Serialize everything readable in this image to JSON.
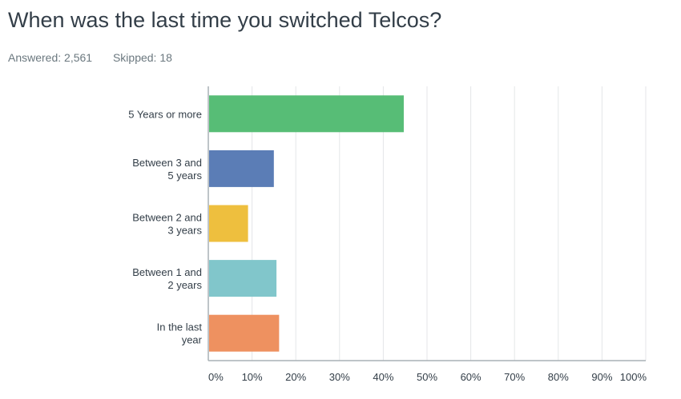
{
  "question": {
    "title": "When was the last time you switched Telcos?",
    "answered": "Answered: 2,561",
    "skipped": "Skipped: 18"
  },
  "chart_data": {
    "type": "bar",
    "orientation": "horizontal",
    "categories": [
      [
        "5 Years or more"
      ],
      [
        "Between 3 and",
        "5 years"
      ],
      [
        "Between 2 and",
        "3 years"
      ],
      [
        "Between 1 and",
        "2 years"
      ],
      [
        "In the last",
        "year"
      ]
    ],
    "values": [
      44.5,
      14.8,
      8.9,
      15.4,
      16.0
    ],
    "colors": [
      "#57bd76",
      "#5b7db6",
      "#eebf3e",
      "#81c6cb",
      "#ee9160"
    ],
    "xlim": [
      0,
      100
    ],
    "ticks": [
      "0%",
      "10%",
      "20%",
      "30%",
      "40%",
      "50%",
      "60%",
      "70%",
      "80%",
      "90%",
      "100%"
    ],
    "grid": true,
    "legend": "none"
  }
}
